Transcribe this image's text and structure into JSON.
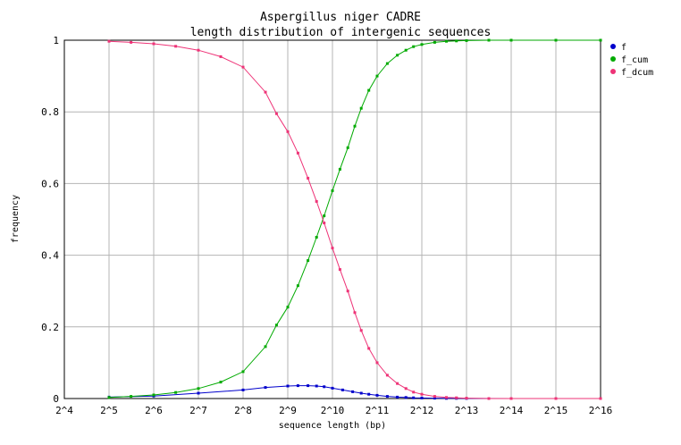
{
  "chart_data": {
    "type": "line",
    "title": "Aspergillus niger CADRE",
    "subtitle": "length distribution of intergenic sequences",
    "xlabel": "sequence length (bp)",
    "ylabel": "frequency",
    "x_scale": "log2",
    "xlim": [
      16,
      65536
    ],
    "ylim": [
      0,
      1
    ],
    "grid": true,
    "legend_position": "top-right",
    "x_ticks": [
      {
        "value": 16,
        "label": "2^4"
      },
      {
        "value": 32,
        "label": "2^5"
      },
      {
        "value": 64,
        "label": "2^6"
      },
      {
        "value": 128,
        "label": "2^7"
      },
      {
        "value": 256,
        "label": "2^8"
      },
      {
        "value": 512,
        "label": "2^9"
      },
      {
        "value": 1024,
        "label": "2^10"
      },
      {
        "value": 2048,
        "label": "2^11"
      },
      {
        "value": 4096,
        "label": "2^12"
      },
      {
        "value": 8192,
        "label": "2^13"
      },
      {
        "value": 16384,
        "label": "2^14"
      },
      {
        "value": 32768,
        "label": "2^15"
      },
      {
        "value": 65536,
        "label": "2^16"
      }
    ],
    "y_ticks": [
      {
        "value": 0,
        "label": "0"
      },
      {
        "value": 0.2,
        "label": "0.2"
      },
      {
        "value": 0.4,
        "label": "0.4"
      },
      {
        "value": 0.6,
        "label": "0.6"
      },
      {
        "value": 0.8,
        "label": "0.8"
      },
      {
        "value": 1,
        "label": "1"
      }
    ],
    "series": [
      {
        "name": "f",
        "color": "#0000cc",
        "x": [
          32,
          64,
          128,
          256,
          362,
          512,
          600,
          700,
          800,
          900,
          1024,
          1200,
          1400,
          1600,
          1800,
          2048,
          2400,
          2800,
          3200,
          3600,
          4096,
          5000,
          6000,
          7000,
          8192,
          16384,
          32768,
          65536
        ],
        "y": [
          0.004,
          0.007,
          0.015,
          0.024,
          0.031,
          0.035,
          0.036,
          0.036,
          0.035,
          0.033,
          0.029,
          0.024,
          0.019,
          0.015,
          0.012,
          0.009,
          0.006,
          0.004,
          0.003,
          0.002,
          0.0015,
          0.001,
          0.0006,
          0.0004,
          0.0003,
          0.0001,
          0.0,
          0.0
        ]
      },
      {
        "name": "f_cum",
        "color": "#00aa00",
        "x": [
          32,
          45,
          64,
          90,
          128,
          181,
          256,
          362,
          430,
          512,
          600,
          700,
          800,
          900,
          1024,
          1150,
          1300,
          1448,
          1600,
          1800,
          2048,
          2400,
          2800,
          3200,
          3600,
          4096,
          5000,
          6000,
          7000,
          8192,
          11585,
          16384,
          32768,
          65536
        ],
        "y": [
          0.003,
          0.006,
          0.01,
          0.017,
          0.028,
          0.046,
          0.075,
          0.145,
          0.205,
          0.255,
          0.315,
          0.385,
          0.45,
          0.51,
          0.58,
          0.64,
          0.7,
          0.76,
          0.81,
          0.86,
          0.9,
          0.935,
          0.958,
          0.972,
          0.982,
          0.988,
          0.994,
          0.997,
          0.998,
          0.999,
          1.0,
          1.0,
          1.0,
          1.0
        ]
      },
      {
        "name": "f_dcum",
        "color": "#ee3377",
        "x": [
          32,
          45,
          64,
          90,
          128,
          181,
          256,
          362,
          430,
          512,
          600,
          700,
          800,
          900,
          1024,
          1150,
          1300,
          1448,
          1600,
          1800,
          2048,
          2400,
          2800,
          3200,
          3600,
          4096,
          5000,
          6000,
          7000,
          8192,
          11585,
          16384,
          32768,
          65536
        ],
        "y": [
          0.997,
          0.994,
          0.99,
          0.983,
          0.972,
          0.954,
          0.925,
          0.855,
          0.795,
          0.745,
          0.685,
          0.615,
          0.55,
          0.49,
          0.42,
          0.36,
          0.3,
          0.24,
          0.19,
          0.14,
          0.1,
          0.065,
          0.042,
          0.028,
          0.018,
          0.012,
          0.006,
          0.003,
          0.002,
          0.001,
          0.0,
          0.0,
          0.0,
          0.0
        ]
      }
    ]
  }
}
